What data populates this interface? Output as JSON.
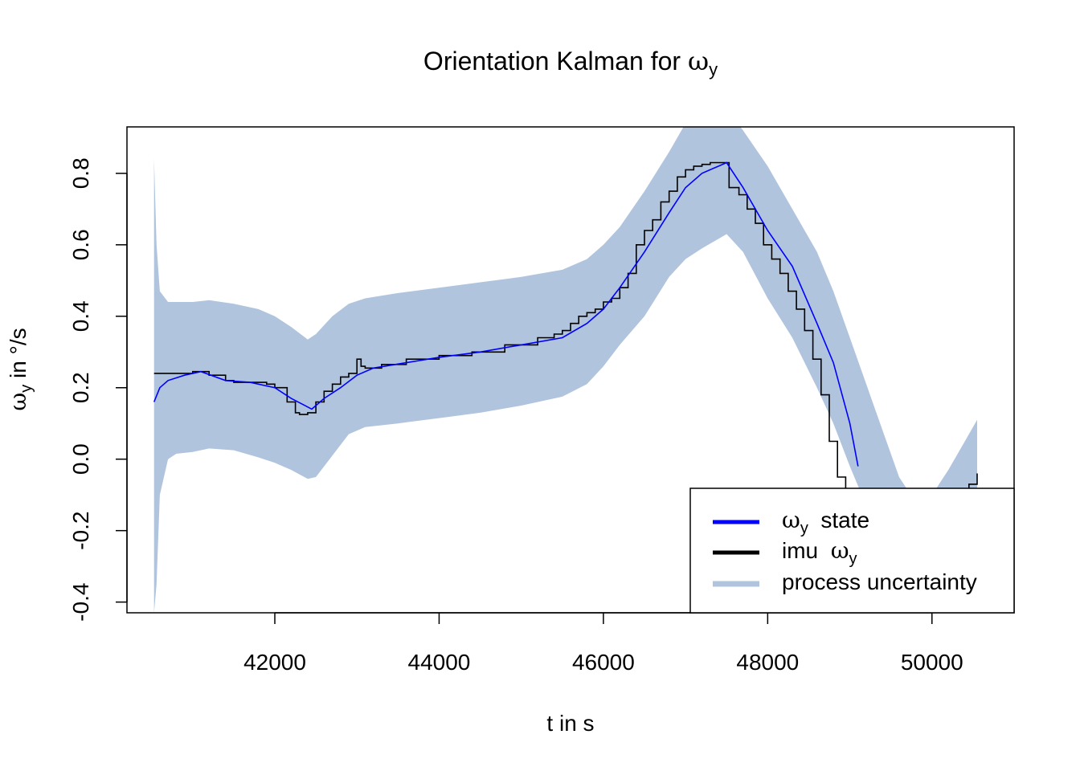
{
  "chart_data": {
    "type": "line",
    "title": {
      "prefix": "Orientation Kalman for ",
      "symbol": "ω",
      "subscript": "y"
    },
    "xlabel": "t in s",
    "ylabel": {
      "symbol": "ω",
      "subscript": "y",
      "suffix": " in °/s"
    },
    "xlim": [
      40200,
      51000
    ],
    "ylim": [
      -0.43,
      0.93
    ],
    "xticks": [
      42000,
      44000,
      46000,
      48000,
      50000
    ],
    "xtick_labels": [
      "42000",
      "44000",
      "46000",
      "48000",
      "50000"
    ],
    "yticks": [
      -0.4,
      -0.2,
      0.0,
      0.2,
      0.4,
      0.6,
      0.8
    ],
    "ytick_labels": [
      "-0.4",
      "-0.2",
      "0.0",
      "0.2",
      "0.4",
      "0.6",
      "0.8"
    ],
    "grid": false,
    "legend": {
      "position": "bottom-right",
      "entries": [
        {
          "symbol": "ω",
          "subscript": "y",
          "text": "  state",
          "symbol_first": true,
          "color": "#0000ff"
        },
        {
          "symbol": "ω",
          "subscript": "y",
          "text": "imu  ",
          "symbol_first": false,
          "color": "#000000"
        },
        {
          "symbol": "",
          "subscript": "",
          "text": "process uncertainty",
          "symbol_first": false,
          "color": "#b0c4de"
        }
      ]
    },
    "series": [
      {
        "name": "process uncertainty",
        "kind": "band",
        "color": "#b0c4de",
        "x": [
          40530,
          40560,
          40600,
          40700,
          40800,
          41000,
          41200,
          41500,
          41800,
          42000,
          42200,
          42400,
          42500,
          42700,
          42900,
          43100,
          43500,
          44000,
          44500,
          45000,
          45500,
          45800,
          46000,
          46200,
          46500,
          46800,
          47000,
          47200,
          47500,
          47700,
          48000,
          48300,
          48600,
          48800,
          49000,
          49200,
          49400,
          49600,
          49800,
          50000,
          50200,
          50400,
          50550
        ],
        "lower": [
          -0.43,
          -0.35,
          -0.1,
          0.0,
          0.015,
          0.02,
          0.03,
          0.025,
          0.005,
          -0.01,
          -0.03,
          -0.055,
          -0.05,
          0.01,
          0.07,
          0.09,
          0.1,
          0.115,
          0.13,
          0.15,
          0.175,
          0.21,
          0.26,
          0.32,
          0.4,
          0.51,
          0.56,
          0.59,
          0.63,
          0.58,
          0.45,
          0.34,
          0.2,
          0.1,
          -0.02,
          -0.13,
          -0.24,
          -0.33,
          -0.4,
          -0.46,
          -0.52,
          -0.55,
          -0.57
        ],
        "upper": [
          0.84,
          0.6,
          0.47,
          0.44,
          0.44,
          0.44,
          0.445,
          0.435,
          0.42,
          0.4,
          0.37,
          0.335,
          0.35,
          0.4,
          0.435,
          0.45,
          0.465,
          0.48,
          0.495,
          0.51,
          0.53,
          0.56,
          0.6,
          0.65,
          0.75,
          0.86,
          0.94,
          0.97,
          0.98,
          0.92,
          0.82,
          0.7,
          0.58,
          0.47,
          0.34,
          0.21,
          0.08,
          -0.05,
          -0.12,
          -0.1,
          -0.03,
          0.05,
          0.11
        ]
      },
      {
        "name": "imu ω_y",
        "kind": "step",
        "color": "#000000",
        "x": [
          40530,
          40800,
          41000,
          41200,
          41400,
          41500,
          41700,
          41900,
          42000,
          42150,
          42250,
          42300,
          42400,
          42500,
          42600,
          42700,
          42800,
          42900,
          43000,
          43050,
          43100,
          43300,
          43600,
          44000,
          44400,
          44800,
          45200,
          45400,
          45500,
          45600,
          45700,
          45800,
          45900,
          46000,
          46100,
          46200,
          46300,
          46400,
          46500,
          46600,
          46700,
          46800,
          46900,
          47000,
          47100,
          47200,
          47300,
          47400,
          47500,
          47530,
          47650,
          47750,
          47850,
          47950,
          48050,
          48150,
          48250,
          48350,
          48450,
          48550,
          48650,
          48750,
          48850,
          48950,
          49050,
          50450,
          50550
        ],
        "y": [
          0.24,
          0.24,
          0.245,
          0.235,
          0.22,
          0.215,
          0.215,
          0.21,
          0.2,
          0.16,
          0.13,
          0.125,
          0.13,
          0.16,
          0.19,
          0.21,
          0.23,
          0.24,
          0.28,
          0.26,
          0.255,
          0.265,
          0.28,
          0.29,
          0.3,
          0.32,
          0.34,
          0.35,
          0.36,
          0.38,
          0.4,
          0.41,
          0.42,
          0.44,
          0.45,
          0.48,
          0.52,
          0.6,
          0.64,
          0.67,
          0.72,
          0.75,
          0.79,
          0.81,
          0.82,
          0.825,
          0.83,
          0.83,
          0.83,
          0.76,
          0.74,
          0.7,
          0.66,
          0.6,
          0.56,
          0.52,
          0.47,
          0.42,
          0.36,
          0.28,
          0.18,
          0.05,
          -0.05,
          -0.1,
          -0.2,
          -0.07,
          -0.04
        ]
      },
      {
        "name": "ω_y state",
        "kind": "line",
        "color": "#0000ff",
        "x": [
          40530,
          40600,
          40700,
          40900,
          41100,
          41400,
          41700,
          42000,
          42200,
          42450,
          42600,
          42800,
          43000,
          43200,
          43600,
          44000,
          44500,
          45000,
          45500,
          45800,
          46000,
          46200,
          46500,
          46800,
          47000,
          47200,
          47500,
          47700,
          48000,
          48300,
          48600,
          48800,
          49000,
          49100
        ],
        "y": [
          0.16,
          0.2,
          0.22,
          0.235,
          0.245,
          0.22,
          0.215,
          0.2,
          0.17,
          0.14,
          0.17,
          0.2,
          0.235,
          0.255,
          0.27,
          0.285,
          0.3,
          0.32,
          0.34,
          0.38,
          0.42,
          0.48,
          0.58,
          0.69,
          0.76,
          0.8,
          0.83,
          0.76,
          0.64,
          0.54,
          0.38,
          0.27,
          0.1,
          -0.02
        ]
      }
    ]
  }
}
